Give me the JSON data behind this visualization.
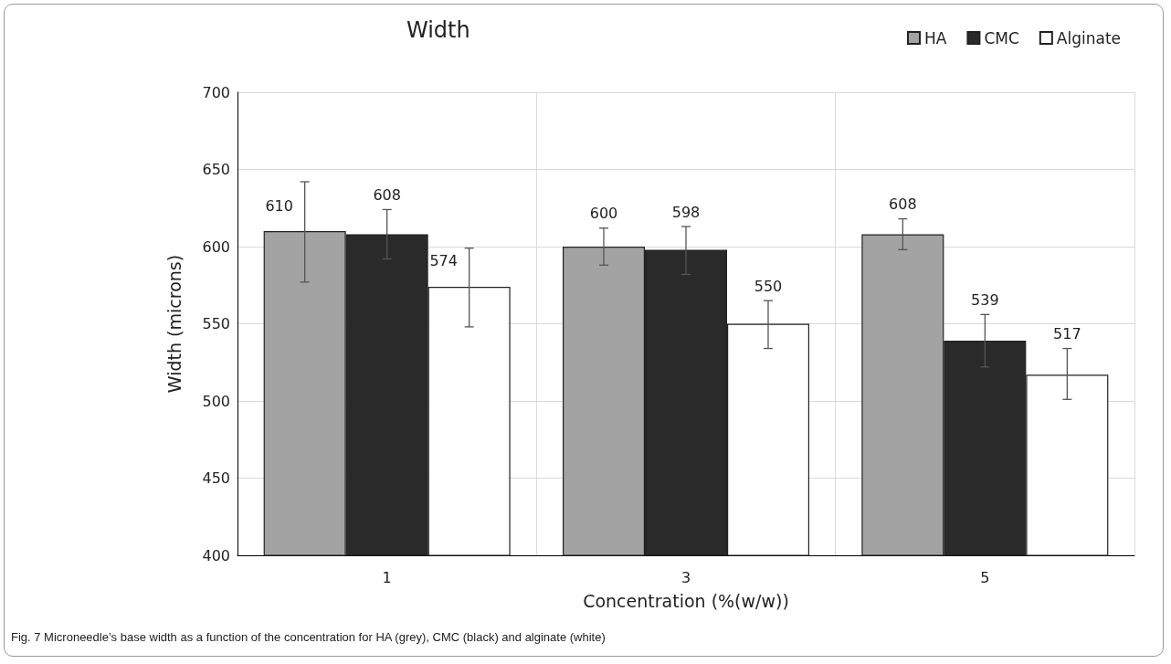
{
  "chart_data": {
    "type": "bar",
    "title": "Width",
    "xlabel": "Concentration (%(w/w))",
    "ylabel": "Width (microns)",
    "categories": [
      "1",
      "3",
      "5"
    ],
    "series": [
      {
        "name": "HA",
        "color": "#a3a3a3",
        "values": [
          610,
          600,
          608
        ],
        "errors": [
          [
            577,
            642
          ],
          [
            588,
            612
          ],
          [
            598,
            618
          ]
        ]
      },
      {
        "name": "CMC",
        "color": "#2a2a2a",
        "values": [
          608,
          598,
          539
        ],
        "errors": [
          [
            592,
            624
          ],
          [
            582,
            613
          ],
          [
            522,
            556
          ]
        ]
      },
      {
        "name": "Alginate",
        "color": "#ffffff",
        "values": [
          574,
          550,
          517
        ],
        "errors": [
          [
            548,
            599
          ],
          [
            534,
            565
          ],
          [
            501,
            534
          ]
        ]
      }
    ],
    "ylim": [
      400,
      700
    ],
    "yticks": [
      400,
      450,
      500,
      550,
      600,
      650,
      700
    ],
    "grid": true,
    "legend": "top right",
    "data_labels": true,
    "annotations": [
      "Fig. 7  Microneedle’s base width as a function of the concentration for HA (grey), CMC (black) and alginate (white)"
    ]
  }
}
